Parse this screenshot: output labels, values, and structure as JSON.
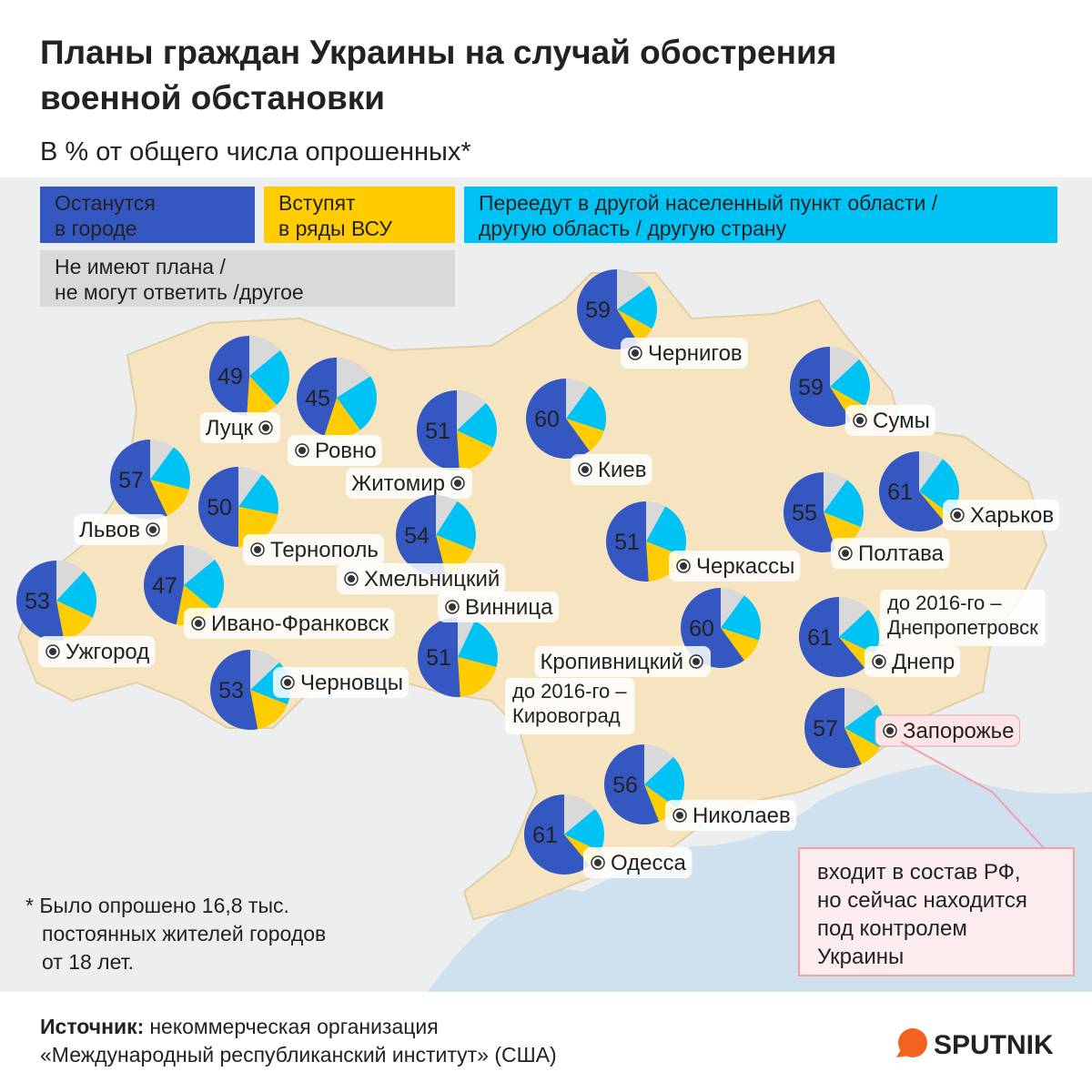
{
  "title": [
    "Планы граждан Украины на случай обострения",
    "военной обстановки"
  ],
  "subtitle": "В % от общего числа опрошенных*",
  "legend": [
    {
      "label": [
        "Останутся",
        "в городе"
      ],
      "color": "#3557c1"
    },
    {
      "label": [
        "Вступят",
        "в ряды ВСУ"
      ],
      "color": "#ffcc00"
    },
    {
      "label": [
        "Переедут в другой населенный пункт области /",
        "другую область / другую страну"
      ],
      "color": "#00c3f5"
    },
    {
      "label": [
        "Не имеют плана /",
        "не могут ответить /другое"
      ],
      "color": "#d9d9d9"
    }
  ],
  "cities": [
    {
      "name": "Луцк",
      "values": [
        49,
        13,
        24,
        14
      ]
    },
    {
      "name": "Ровно",
      "values": [
        45,
        15,
        24,
        16
      ]
    },
    {
      "name": "Житомир",
      "values": [
        51,
        17,
        19,
        13
      ]
    },
    {
      "name": "Киев",
      "values": [
        60,
        10,
        20,
        10
      ]
    },
    {
      "name": "Чернигов",
      "values": [
        59,
        8,
        18,
        15
      ]
    },
    {
      "name": "Сумы",
      "values": [
        59,
        8,
        20,
        13
      ]
    },
    {
      "name": "Харьков",
      "values": [
        61,
        4,
        25,
        10
      ]
    },
    {
      "name": "Львов",
      "values": [
        57,
        14,
        19,
        10
      ]
    },
    {
      "name": "Тернополь",
      "values": [
        50,
        22,
        18,
        10
      ]
    },
    {
      "name": "Хмельницкий",
      "values": [
        54,
        15,
        22,
        9
      ]
    },
    {
      "name": "Черкассы",
      "values": [
        51,
        18,
        23,
        8
      ]
    },
    {
      "name": "Полтава",
      "values": [
        55,
        14,
        21,
        10
      ]
    },
    {
      "name": "Ужгород",
      "values": [
        53,
        15,
        20,
        12
      ]
    },
    {
      "name": "Ивано-Франковск",
      "values": [
        47,
        17,
        22,
        14
      ]
    },
    {
      "name": "Черновцы",
      "values": [
        53,
        16,
        18,
        13
      ]
    },
    {
      "name": "Винница",
      "values": [
        51,
        20,
        22,
        7
      ]
    },
    {
      "name": "Кропивницкий",
      "values": [
        60,
        10,
        20,
        10
      ],
      "note": [
        "до 2016-го –",
        "Кировоград"
      ]
    },
    {
      "name": "Днепр",
      "values": [
        61,
        7,
        19,
        13
      ],
      "note": [
        "до 2016-го –",
        "Днепропетровск"
      ]
    },
    {
      "name": "Запорожье",
      "values": [
        57,
        10,
        18,
        15
      ]
    },
    {
      "name": "Николаев",
      "values": [
        56,
        9,
        22,
        13
      ]
    },
    {
      "name": "Одесса",
      "values": [
        61,
        7,
        18,
        14
      ]
    }
  ],
  "callout": [
    "входит в состав РФ,",
    "но сейчас находится",
    "под контролем",
    "Украины"
  ],
  "footnote": [
    "* Было опрошено 16,8 тыс.",
    "постоянных жителей городов",
    "от 18 лет."
  ],
  "source": {
    "label": "Источник:",
    "lines": [
      "некоммерческая организация",
      "«Международный республиканский институт» (США)"
    ]
  },
  "logo": "SPUTNIK"
}
